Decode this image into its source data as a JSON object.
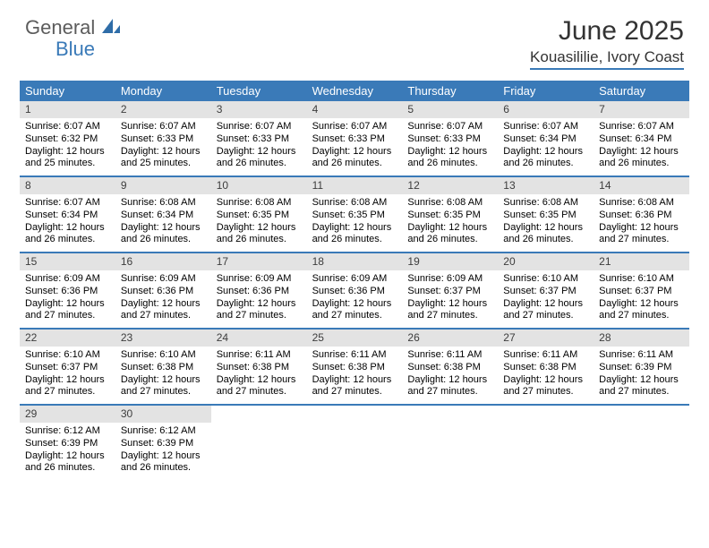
{
  "brand": {
    "word1": "General",
    "word2": "Blue"
  },
  "title": "June 2025",
  "location": "Kouasililie, Ivory Coast",
  "colors": {
    "header_bg": "#3a7ab8",
    "daynum_bg": "#e3e3e3",
    "rule": "#3a7ab8",
    "logo_gray": "#5c5c5c",
    "logo_blue": "#3a7ab8"
  },
  "dow": [
    "Sunday",
    "Monday",
    "Tuesday",
    "Wednesday",
    "Thursday",
    "Friday",
    "Saturday"
  ],
  "days": [
    {
      "n": "1",
      "sr": "Sunrise: 6:07 AM",
      "ss": "Sunset: 6:32 PM",
      "d1": "Daylight: 12 hours",
      "d2": "and 25 minutes."
    },
    {
      "n": "2",
      "sr": "Sunrise: 6:07 AM",
      "ss": "Sunset: 6:33 PM",
      "d1": "Daylight: 12 hours",
      "d2": "and 25 minutes."
    },
    {
      "n": "3",
      "sr": "Sunrise: 6:07 AM",
      "ss": "Sunset: 6:33 PM",
      "d1": "Daylight: 12 hours",
      "d2": "and 26 minutes."
    },
    {
      "n": "4",
      "sr": "Sunrise: 6:07 AM",
      "ss": "Sunset: 6:33 PM",
      "d1": "Daylight: 12 hours",
      "d2": "and 26 minutes."
    },
    {
      "n": "5",
      "sr": "Sunrise: 6:07 AM",
      "ss": "Sunset: 6:33 PM",
      "d1": "Daylight: 12 hours",
      "d2": "and 26 minutes."
    },
    {
      "n": "6",
      "sr": "Sunrise: 6:07 AM",
      "ss": "Sunset: 6:34 PM",
      "d1": "Daylight: 12 hours",
      "d2": "and 26 minutes."
    },
    {
      "n": "7",
      "sr": "Sunrise: 6:07 AM",
      "ss": "Sunset: 6:34 PM",
      "d1": "Daylight: 12 hours",
      "d2": "and 26 minutes."
    },
    {
      "n": "8",
      "sr": "Sunrise: 6:07 AM",
      "ss": "Sunset: 6:34 PM",
      "d1": "Daylight: 12 hours",
      "d2": "and 26 minutes."
    },
    {
      "n": "9",
      "sr": "Sunrise: 6:08 AM",
      "ss": "Sunset: 6:34 PM",
      "d1": "Daylight: 12 hours",
      "d2": "and 26 minutes."
    },
    {
      "n": "10",
      "sr": "Sunrise: 6:08 AM",
      "ss": "Sunset: 6:35 PM",
      "d1": "Daylight: 12 hours",
      "d2": "and 26 minutes."
    },
    {
      "n": "11",
      "sr": "Sunrise: 6:08 AM",
      "ss": "Sunset: 6:35 PM",
      "d1": "Daylight: 12 hours",
      "d2": "and 26 minutes."
    },
    {
      "n": "12",
      "sr": "Sunrise: 6:08 AM",
      "ss": "Sunset: 6:35 PM",
      "d1": "Daylight: 12 hours",
      "d2": "and 26 minutes."
    },
    {
      "n": "13",
      "sr": "Sunrise: 6:08 AM",
      "ss": "Sunset: 6:35 PM",
      "d1": "Daylight: 12 hours",
      "d2": "and 26 minutes."
    },
    {
      "n": "14",
      "sr": "Sunrise: 6:08 AM",
      "ss": "Sunset: 6:36 PM",
      "d1": "Daylight: 12 hours",
      "d2": "and 27 minutes."
    },
    {
      "n": "15",
      "sr": "Sunrise: 6:09 AM",
      "ss": "Sunset: 6:36 PM",
      "d1": "Daylight: 12 hours",
      "d2": "and 27 minutes."
    },
    {
      "n": "16",
      "sr": "Sunrise: 6:09 AM",
      "ss": "Sunset: 6:36 PM",
      "d1": "Daylight: 12 hours",
      "d2": "and 27 minutes."
    },
    {
      "n": "17",
      "sr": "Sunrise: 6:09 AM",
      "ss": "Sunset: 6:36 PM",
      "d1": "Daylight: 12 hours",
      "d2": "and 27 minutes."
    },
    {
      "n": "18",
      "sr": "Sunrise: 6:09 AM",
      "ss": "Sunset: 6:36 PM",
      "d1": "Daylight: 12 hours",
      "d2": "and 27 minutes."
    },
    {
      "n": "19",
      "sr": "Sunrise: 6:09 AM",
      "ss": "Sunset: 6:37 PM",
      "d1": "Daylight: 12 hours",
      "d2": "and 27 minutes."
    },
    {
      "n": "20",
      "sr": "Sunrise: 6:10 AM",
      "ss": "Sunset: 6:37 PM",
      "d1": "Daylight: 12 hours",
      "d2": "and 27 minutes."
    },
    {
      "n": "21",
      "sr": "Sunrise: 6:10 AM",
      "ss": "Sunset: 6:37 PM",
      "d1": "Daylight: 12 hours",
      "d2": "and 27 minutes."
    },
    {
      "n": "22",
      "sr": "Sunrise: 6:10 AM",
      "ss": "Sunset: 6:37 PM",
      "d1": "Daylight: 12 hours",
      "d2": "and 27 minutes."
    },
    {
      "n": "23",
      "sr": "Sunrise: 6:10 AM",
      "ss": "Sunset: 6:38 PM",
      "d1": "Daylight: 12 hours",
      "d2": "and 27 minutes."
    },
    {
      "n": "24",
      "sr": "Sunrise: 6:11 AM",
      "ss": "Sunset: 6:38 PM",
      "d1": "Daylight: 12 hours",
      "d2": "and 27 minutes."
    },
    {
      "n": "25",
      "sr": "Sunrise: 6:11 AM",
      "ss": "Sunset: 6:38 PM",
      "d1": "Daylight: 12 hours",
      "d2": "and 27 minutes."
    },
    {
      "n": "26",
      "sr": "Sunrise: 6:11 AM",
      "ss": "Sunset: 6:38 PM",
      "d1": "Daylight: 12 hours",
      "d2": "and 27 minutes."
    },
    {
      "n": "27",
      "sr": "Sunrise: 6:11 AM",
      "ss": "Sunset: 6:38 PM",
      "d1": "Daylight: 12 hours",
      "d2": "and 27 minutes."
    },
    {
      "n": "28",
      "sr": "Sunrise: 6:11 AM",
      "ss": "Sunset: 6:39 PM",
      "d1": "Daylight: 12 hours",
      "d2": "and 27 minutes."
    },
    {
      "n": "29",
      "sr": "Sunrise: 6:12 AM",
      "ss": "Sunset: 6:39 PM",
      "d1": "Daylight: 12 hours",
      "d2": "and 26 minutes."
    },
    {
      "n": "30",
      "sr": "Sunrise: 6:12 AM",
      "ss": "Sunset: 6:39 PM",
      "d1": "Daylight: 12 hours",
      "d2": "and 26 minutes."
    }
  ]
}
